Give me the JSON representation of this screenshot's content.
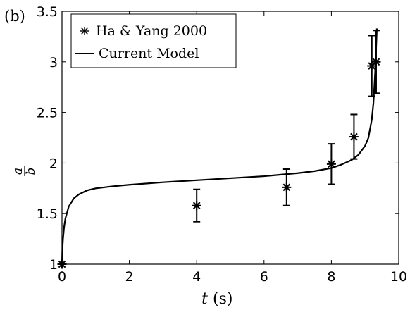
{
  "panel_label": "(b)",
  "chart_data": {
    "type": "scatter",
    "xlabel_var": "t",
    "xlabel_unit": "(s)",
    "ylabel_num": "a",
    "ylabel_den": "b",
    "xlim": [
      0,
      10
    ],
    "ylim": [
      1,
      3.5
    ],
    "x_ticks": [
      0,
      2,
      4,
      6,
      8,
      10
    ],
    "y_ticks": [
      1,
      1.5,
      2,
      2.5,
      3,
      3.5
    ],
    "x_tick_labels": [
      "0",
      "2",
      "4",
      "6",
      "8",
      "10"
    ],
    "y_tick_labels": [
      "1",
      "1.5",
      "2",
      "2.5",
      "3",
      "3.5"
    ],
    "grid": false,
    "legend_position": "top-left",
    "series": [
      {
        "name": "Ha & Yang 2000",
        "kind": "scatter-errorbar",
        "marker": "asterisk",
        "points": [
          {
            "x": 0.0,
            "y": 1.0,
            "err": 0.0
          },
          {
            "x": 4.0,
            "y": 1.58,
            "err": 0.16
          },
          {
            "x": 6.67,
            "y": 1.76,
            "err": 0.18
          },
          {
            "x": 8.0,
            "y": 1.99,
            "err": 0.2
          },
          {
            "x": 8.67,
            "y": 2.26,
            "err": 0.22
          },
          {
            "x": 9.2,
            "y": 2.96,
            "err": 0.3
          },
          {
            "x": 9.33,
            "y": 3.0,
            "err": 0.31
          }
        ]
      },
      {
        "name": "Current Model",
        "kind": "line",
        "x": [
          0.0,
          0.01,
          0.03,
          0.06,
          0.1,
          0.2,
          0.35,
          0.5,
          0.75,
          1.0,
          1.5,
          2.0,
          3.0,
          4.0,
          5.0,
          6.0,
          7.0,
          7.5,
          8.0,
          8.3,
          8.6,
          8.8,
          9.0,
          9.1,
          9.2,
          9.25,
          9.3,
          9.33,
          9.35
        ],
        "y": [
          1.0,
          1.13,
          1.25,
          1.36,
          1.45,
          1.57,
          1.65,
          1.69,
          1.73,
          1.75,
          1.77,
          1.785,
          1.81,
          1.83,
          1.85,
          1.87,
          1.9,
          1.92,
          1.95,
          1.985,
          2.03,
          2.08,
          2.17,
          2.25,
          2.43,
          2.6,
          2.9,
          3.15,
          3.33
        ]
      }
    ]
  }
}
